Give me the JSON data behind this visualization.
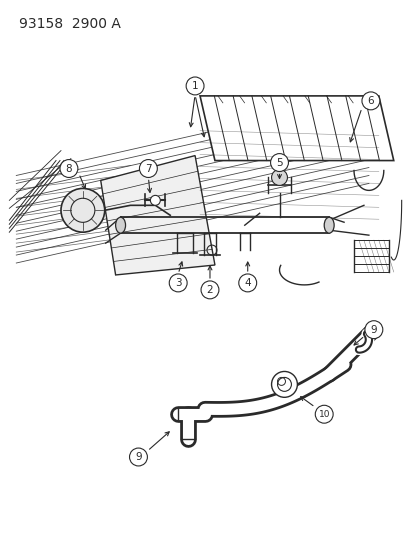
{
  "title": "93158  2900 A",
  "title_fontsize": 10,
  "bg_color": "#ffffff",
  "line_color": "#2a2a2a",
  "label_fontsize": 7.5,
  "fig_w": 4.14,
  "fig_h": 5.33,
  "dpi": 100
}
